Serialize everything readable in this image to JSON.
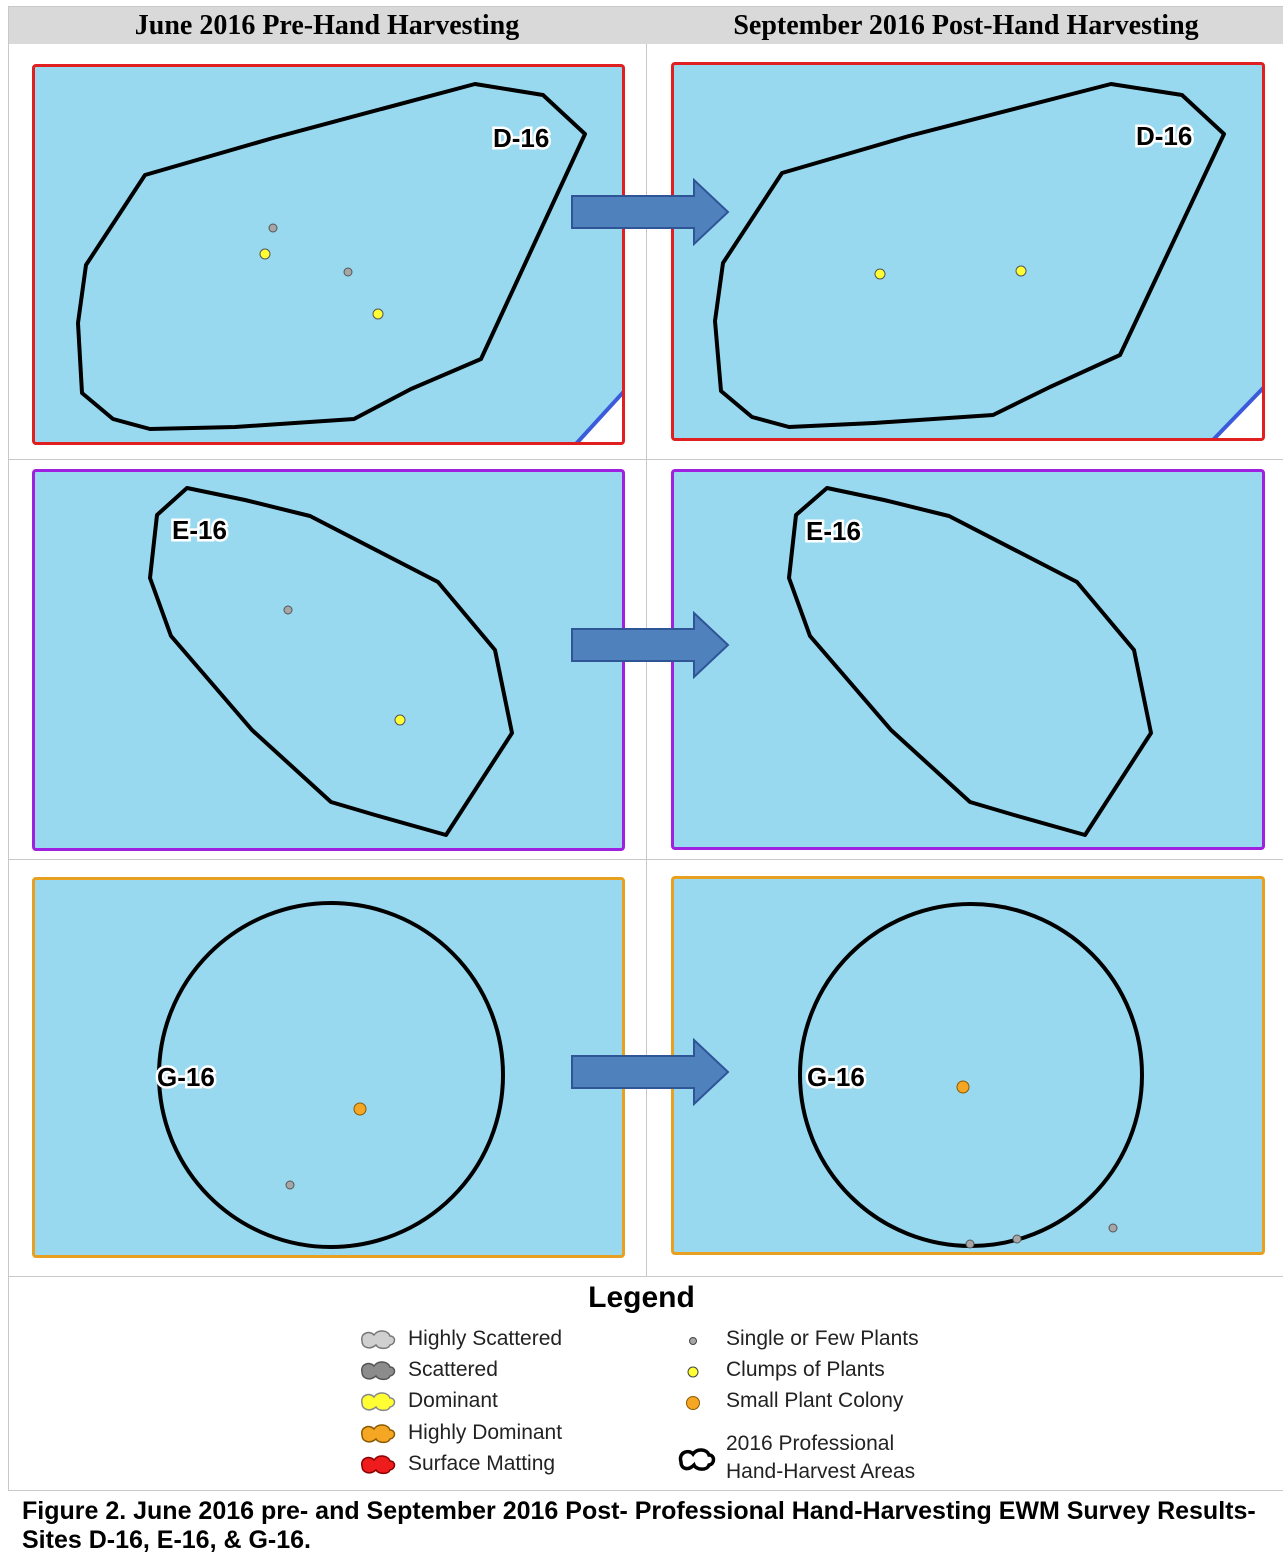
{
  "headers": {
    "left": "June 2016 Pre-Hand Harvesting",
    "right": "September 2016 Post-Hand Harvesting"
  },
  "colors": {
    "water": "#99d9f0",
    "site_outline": "#000000",
    "frame_d16": "#e02020",
    "frame_e16": "#a020e0",
    "frame_g16": "#e8a020",
    "arrow_fill": "#4f81bd",
    "arrow_stroke": "#2f5597",
    "boundary_line": "#3b5bdb"
  },
  "sites": [
    {
      "id": "d16",
      "label": "D-16"
    },
    {
      "id": "e16",
      "label": "E-16"
    },
    {
      "id": "g16",
      "label": "G-16"
    }
  ],
  "legend": {
    "title": "Legend",
    "bed_items": [
      {
        "label": "Highly Scattered",
        "color": "#d0d0d0"
      },
      {
        "label": "Scattered",
        "color": "#8c8c8c"
      },
      {
        "label": "Dominant",
        "color": "#ffff33"
      },
      {
        "label": "Highly Dominant",
        "color": "#f5a623"
      },
      {
        "label": "Surface Matting",
        "color": "#ee1c1c"
      }
    ],
    "point_items": [
      {
        "label": "Single or Few Plants",
        "color": "#a6a6a6"
      },
      {
        "label": "Clumps of Plants",
        "color": "#ffff33"
      },
      {
        "label": "Small Plant Colony",
        "color": "#f5a623"
      }
    ],
    "area_item": {
      "line1": "2016 Professional",
      "line2": "Hand-Harvest Areas"
    }
  },
  "caption": "Figure 2.  June 2016 pre- and September 2016 Post- Professional Hand-Harvesting EWM Survey Results-Sites D-16, E-16, & G-16."
}
